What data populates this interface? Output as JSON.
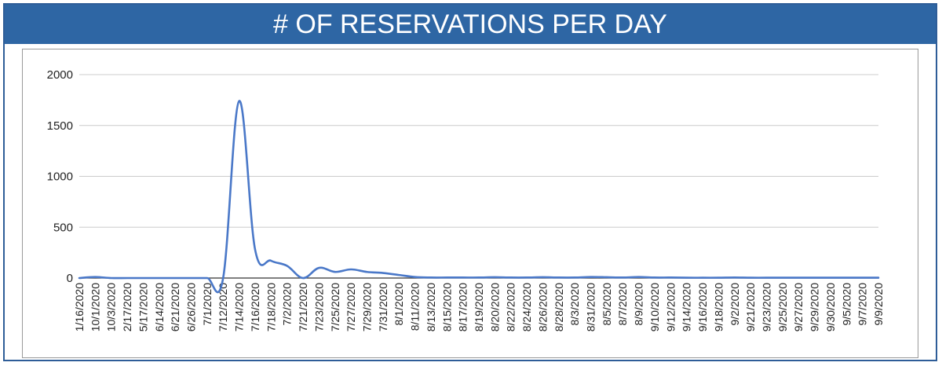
{
  "chart_data": {
    "type": "line",
    "title": "# OF RESERVATIONS PER DAY",
    "xlabel": "",
    "ylabel": "",
    "ylim": [
      0,
      2000
    ],
    "yticks": [
      0,
      500,
      1000,
      1500,
      2000
    ],
    "grid": true,
    "legend": "none",
    "line_color": "#4a78c8",
    "categories": [
      "1/16/2020",
      "10/1/2020",
      "10/3/2020",
      "2/17/2020",
      "5/17/2020",
      "6/14/2020",
      "6/21/2020",
      "6/26/2020",
      "7/1/2020",
      "7/12/2020",
      "7/14/2020",
      "7/16/2020",
      "7/18/2020",
      "7/2/2020",
      "7/21/2020",
      "7/23/2020",
      "7/25/2020",
      "7/27/2020",
      "7/29/2020",
      "7/31/2020",
      "8/1/2020",
      "8/11/2020",
      "8/13/2020",
      "8/15/2020",
      "8/17/2020",
      "8/19/2020",
      "8/20/2020",
      "8/22/2020",
      "8/24/2020",
      "8/26/2020",
      "8/28/2020",
      "8/3/2020",
      "8/31/2020",
      "8/5/2020",
      "8/7/2020",
      "8/9/2020",
      "9/10/2020",
      "9/12/2020",
      "9/14/2020",
      "9/16/2020",
      "9/18/2020",
      "9/2/2020",
      "9/21/2020",
      "9/23/2020",
      "9/25/2020",
      "9/27/2020",
      "9/29/2020",
      "9/30/2020",
      "9/5/2020",
      "9/7/2020",
      "9/9/2020"
    ],
    "values": [
      0,
      10,
      0,
      0,
      0,
      0,
      0,
      0,
      0,
      0,
      1740,
      280,
      170,
      120,
      0,
      100,
      60,
      85,
      60,
      50,
      30,
      10,
      5,
      5,
      5,
      5,
      8,
      5,
      5,
      8,
      5,
      5,
      10,
      8,
      5,
      10,
      5,
      5,
      3,
      3,
      3,
      5,
      3,
      3,
      3,
      3,
      3,
      3,
      3,
      3,
      3
    ]
  }
}
